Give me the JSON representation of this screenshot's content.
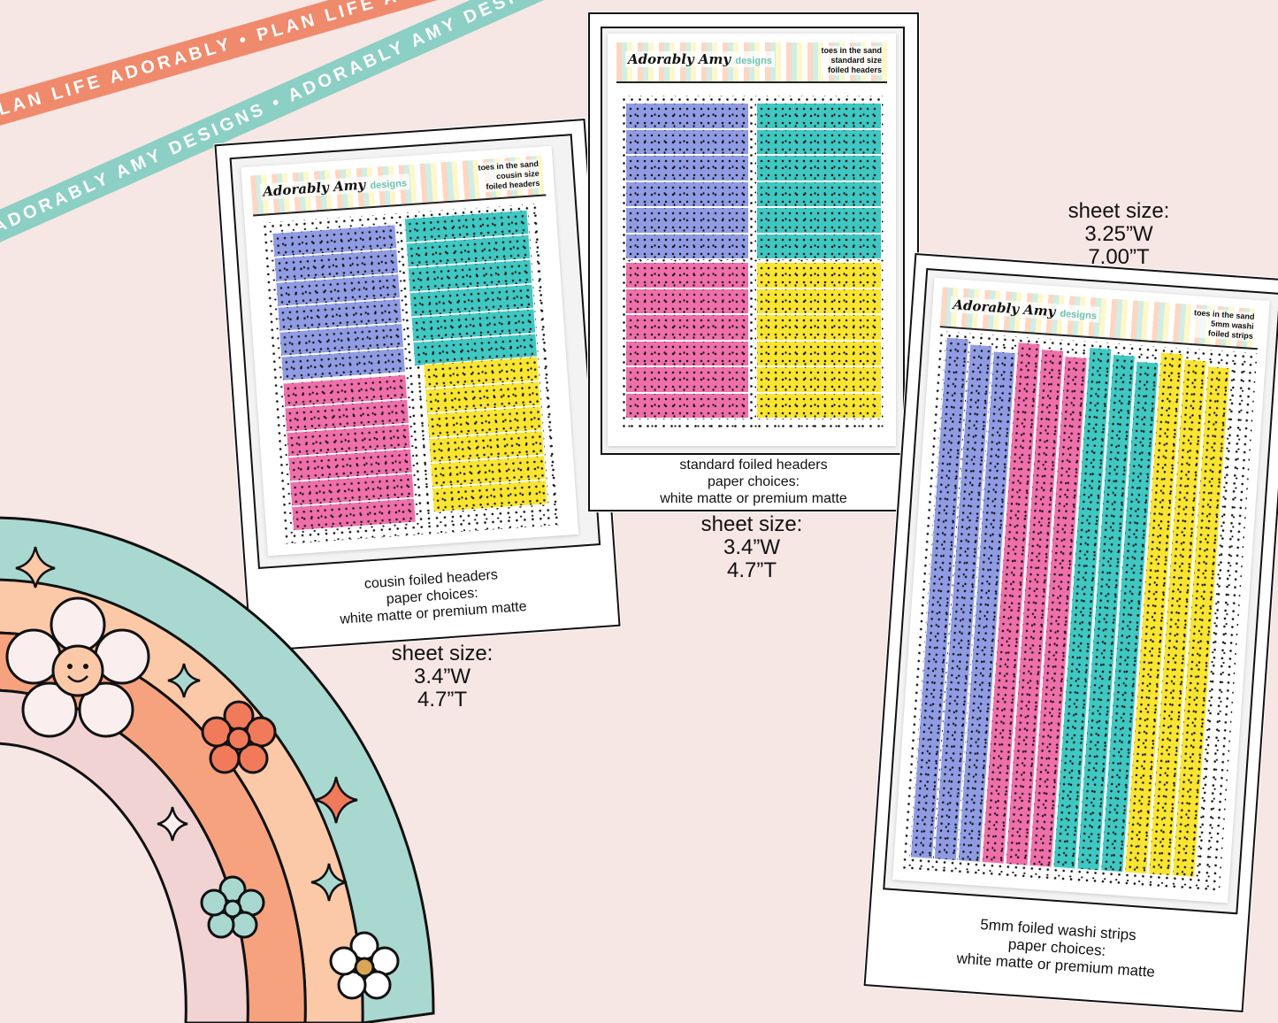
{
  "ribbons": {
    "coral_text": "PLAN LIFE ADORABLY • PLAN LIFE ADORABLY • PLAN LIFE ADORABLY • PLAN LIFE ADORABLY •",
    "teal_text": "ADORABLY AMY DESIGNS • ADORABLY AMY DESIGNS • ADORABLY AMY DESIGNS • ADORABLY AMY DESIGNS •"
  },
  "colors": {
    "background": "#f6e6e4",
    "periwinkle": "#8f9be3",
    "teal": "#3fc7c2",
    "pink": "#ef6faa",
    "yellow": "#f9e531",
    "rainbow_outer": "#a9d8d0",
    "rainbow_peach": "#fbc9a8",
    "rainbow_orange": "#f7a27e",
    "rainbow_inner": "#f2d3d3"
  },
  "cards": {
    "cousin": {
      "brand": "Adorably Amy",
      "brand_sub": "designs",
      "title_line1": "toes in the sand",
      "title_line2": "cousin size",
      "title_line3": "foiled headers",
      "caption_line1": "cousin foiled headers",
      "caption_line2": "paper choices:",
      "caption_line3": "white matte or premium matte",
      "size_line1": "sheet size:",
      "size_line2": "3.4”W",
      "size_line3": "4.7”T"
    },
    "standard": {
      "brand": "Adorably Amy",
      "brand_sub": "designs",
      "title_line1": "toes in the sand",
      "title_line2": "standard size",
      "title_line3": "foiled headers",
      "caption_line1": "standard foiled headers",
      "caption_line2": "paper choices:",
      "caption_line3": "white matte or premium matte",
      "size_line1": "sheet size:",
      "size_line2": "3.4”W",
      "size_line3": "4.7”T"
    },
    "washi": {
      "brand": "Adorably Amy",
      "brand_sub": "designs",
      "title_line1": "toes in the sand",
      "title_line2": "5mm washi",
      "title_line3": "foiled strips",
      "caption_line1": "5mm foiled washi strips",
      "caption_line2": "paper choices:",
      "caption_line3": "white matte or premium matte",
      "size_line1": "sheet size:",
      "size_line2": "3.25”W",
      "size_line3": "7.00”T"
    }
  }
}
